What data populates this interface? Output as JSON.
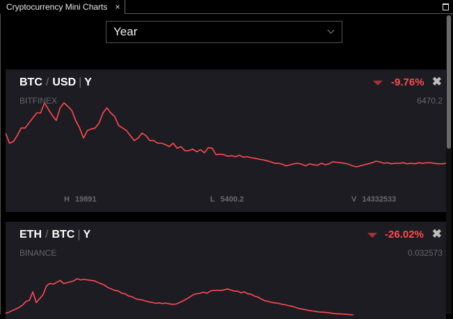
{
  "window": {
    "tab_title": "Cryptocurrency Mini Charts",
    "tab_close_icon": "×"
  },
  "period_select": {
    "value": "Year"
  },
  "cards": [
    {
      "base": "BTC",
      "quote": "USD",
      "period": "Y",
      "exchange": "BITFINEX",
      "change": "-9.76%",
      "price": "6470.2",
      "stats": {
        "high_label": "H",
        "high": "19891",
        "low_label": "L",
        "low": "5400.2",
        "vol_label": "V",
        "vol": "14332533"
      },
      "close_icon": "✖",
      "line_color": "#ff4d52",
      "series": [
        12.5,
        10.5,
        10.8,
        12.0,
        13.5,
        13.5,
        14.5,
        15.5,
        16.5,
        16.5,
        18.5,
        17.2,
        16.0,
        15.0,
        17.5,
        18.5,
        17.8,
        17.0,
        15.0,
        13.5,
        11.5,
        13.0,
        13.3,
        13.5,
        14.5,
        16.5,
        17.5,
        16.5,
        15.8,
        14.0,
        13.5,
        13.0,
        12.0,
        11.0,
        11.5,
        12.5,
        12.0,
        11.0,
        11.0,
        10.5,
        10.5,
        10.2,
        9.8,
        10.5,
        9.5,
        9.8,
        9.0,
        9.0,
        9.3,
        8.8,
        9.2,
        8.6,
        9.6,
        9.5,
        8.2,
        8.3,
        8.2,
        7.9,
        8.0,
        7.8,
        8.1,
        7.7,
        7.8,
        7.6,
        7.5,
        7.3,
        7.2,
        7.0,
        6.8,
        6.5,
        6.5,
        6.3,
        6.0,
        6.2,
        6.4,
        6.5,
        6.3,
        6.0,
        6.4,
        6.2,
        6.1,
        6.5,
        6.2,
        6.4,
        6.8,
        6.7,
        6.6,
        6.5,
        6.3,
        6.0,
        5.8,
        6.0,
        6.2,
        6.4,
        6.6,
        6.9,
        6.8,
        6.5,
        6.6,
        6.4,
        6.5,
        6.5,
        6.6,
        6.4,
        6.5,
        6.4,
        6.6,
        6.5,
        6.6,
        6.6,
        6.5,
        6.4,
        6.4,
        6.5
      ]
    },
    {
      "base": "ETH",
      "quote": "BTC",
      "period": "Y",
      "exchange": "BINANCE",
      "change": "-26.02%",
      "price": "0.032573",
      "close_icon": "✖",
      "line_color": "#ff4d52",
      "series": [
        0.03,
        0.0305,
        0.0312,
        0.0318,
        0.0325,
        0.0335,
        0.035,
        0.0355,
        0.039,
        0.0345,
        0.0362,
        0.0378,
        0.0415,
        0.0425,
        0.0422,
        0.043,
        0.0438,
        0.0425,
        0.0428,
        0.0432,
        0.0436,
        0.0445,
        0.044,
        0.0442,
        0.044,
        0.0438,
        0.0436,
        0.043,
        0.0424,
        0.0418,
        0.0408,
        0.0402,
        0.0396,
        0.0394,
        0.0385,
        0.0382,
        0.0373,
        0.037,
        0.0362,
        0.0358,
        0.0356,
        0.0352,
        0.0348,
        0.0346,
        0.0342,
        0.0344,
        0.0341,
        0.0343,
        0.034,
        0.0338,
        0.0339,
        0.0345,
        0.0352,
        0.036,
        0.0368,
        0.0378,
        0.0382,
        0.0384,
        0.0389,
        0.0384,
        0.0393,
        0.0396,
        0.0397,
        0.0396,
        0.0398,
        0.0402,
        0.0398,
        0.0393,
        0.0393,
        0.0386,
        0.039,
        0.0382,
        0.038,
        0.0372,
        0.0368,
        0.036,
        0.0353,
        0.035,
        0.0346,
        0.0344,
        0.0342,
        0.0338,
        0.0336,
        0.0332,
        0.033,
        0.0325,
        0.032,
        0.0318,
        0.0315,
        0.0312,
        0.031,
        0.0308,
        0.0306,
        0.0305,
        0.0304,
        0.0302,
        0.03,
        0.0298,
        0.0298,
        0.0297,
        0.0296,
        0.0295,
        0.0294
      ]
    }
  ]
}
